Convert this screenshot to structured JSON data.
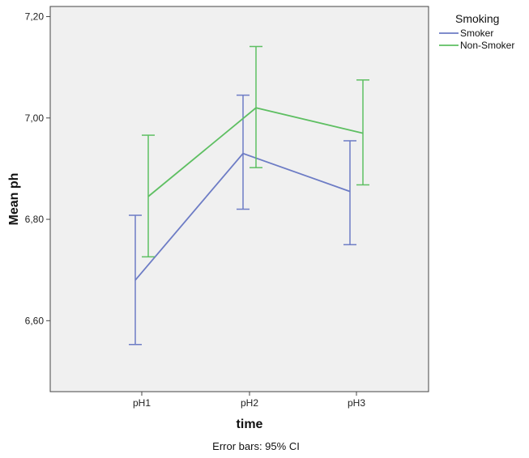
{
  "chart_data": {
    "type": "line",
    "categories": [
      "pH1",
      "pH2",
      "pH3"
    ],
    "xlabel": "time",
    "ylabel": "Mean ph",
    "ylim": [
      6.46,
      7.22
    ],
    "yticks": [
      6.6,
      6.8,
      7.0,
      7.2
    ],
    "ytick_labels": [
      "6,60",
      "6,80",
      "7,00",
      "7,20"
    ],
    "legend_title": "Smoking",
    "legend_position": "top-right outside",
    "grid": false,
    "plot_background": "#f0f0f0",
    "footnote": "Error bars: 95% CI",
    "series": [
      {
        "name": "Smoker",
        "color": "#6d7cc5",
        "values": [
          6.68,
          6.93,
          6.855
        ],
        "ci_lower": [
          6.553,
          6.82,
          6.75
        ],
        "ci_upper": [
          6.808,
          7.045,
          6.955
        ]
      },
      {
        "name": "Non-Smoker",
        "color": "#5ebf62",
        "values": [
          6.845,
          7.02,
          6.97
        ],
        "ci_lower": [
          6.726,
          6.902,
          6.868
        ],
        "ci_upper": [
          6.966,
          7.141,
          7.075
        ]
      }
    ]
  }
}
